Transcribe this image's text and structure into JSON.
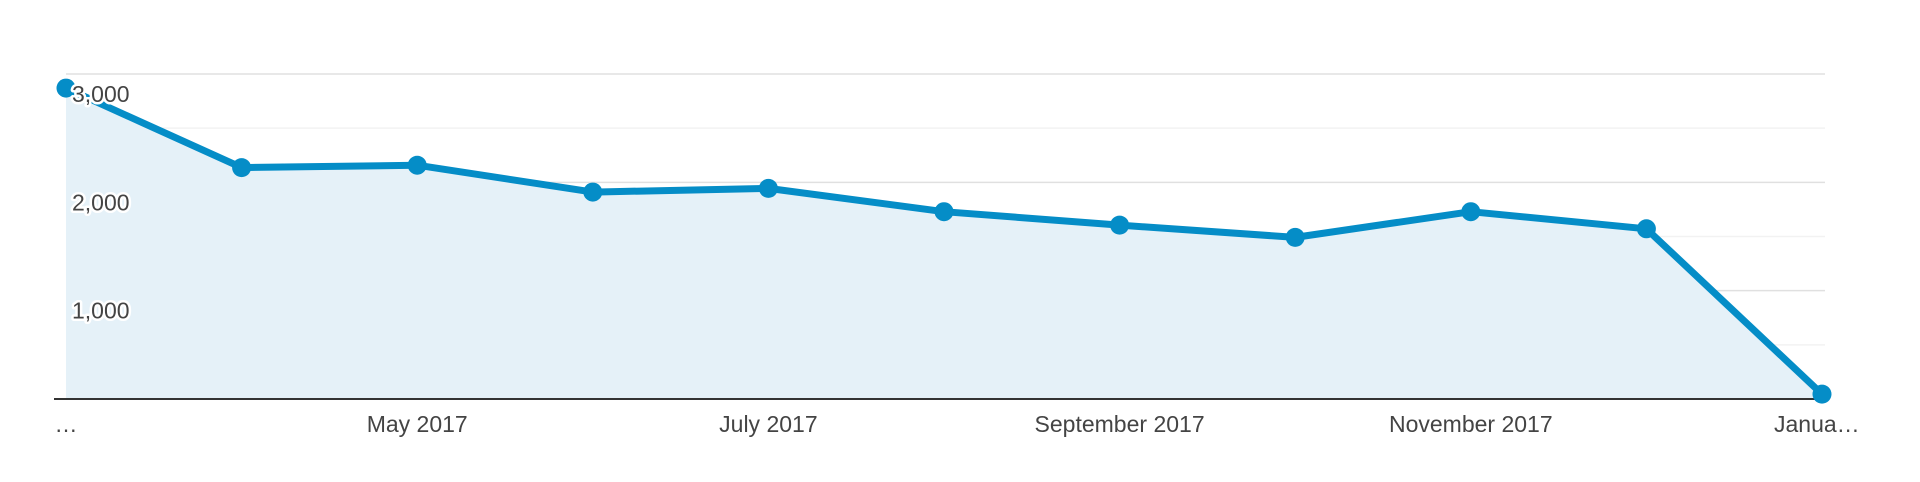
{
  "chart_data": {
    "type": "line",
    "categories": [
      "…",
      null,
      "May 2017",
      null,
      "July 2017",
      null,
      "September 2017",
      null,
      "November 2017",
      null,
      "Janua…"
    ],
    "series": [
      {
        "color": "#058dc7",
        "values": [
          2870,
          2136,
          2158,
          1910,
          1944,
          1729,
          1605,
          1492,
          1729,
          1571,
          45
        ]
      }
    ],
    "ylim": [
      0,
      3000
    ],
    "yticks": [
      {
        "value": 1000,
        "label": "1,000"
      },
      {
        "value": 2000,
        "label": "2,000"
      },
      {
        "value": 3000,
        "label": "3,000"
      }
    ],
    "minor_yticks": [
      500,
      1500,
      2500
    ],
    "grid": true,
    "area": true
  }
}
